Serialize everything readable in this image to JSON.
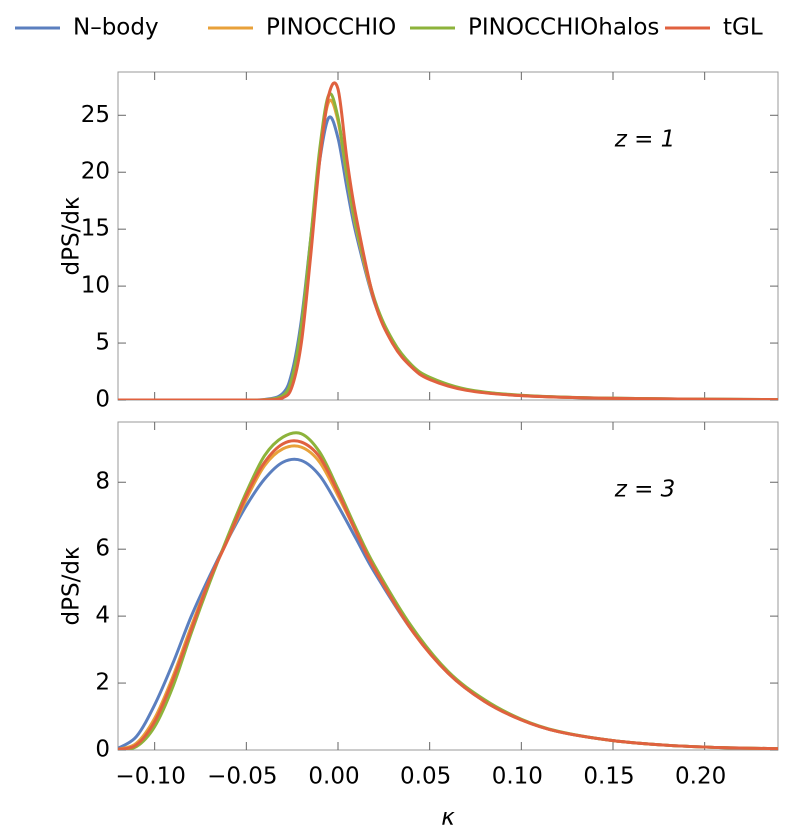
{
  "legend": [
    {
      "name": "N–body",
      "color": "#5b7fbf"
    },
    {
      "name": "PINOCCHIO",
      "color": "#e8a13a"
    },
    {
      "name": "PINOCCHIOhalos",
      "color": "#8db33b"
    },
    {
      "name": "tGL",
      "color": "#e0613f"
    }
  ],
  "chart_data": [
    {
      "type": "line",
      "ylabel": "dPS/dκ",
      "annotation": "z = 1",
      "x": [
        -0.12,
        -0.06,
        -0.04,
        -0.03,
        -0.025,
        -0.02,
        -0.015,
        -0.01,
        -0.005,
        0,
        0.005,
        0.01,
        0.02,
        0.03,
        0.04,
        0.05,
        0.07,
        0.1,
        0.15,
        0.24
      ],
      "series": [
        {
          "values": [
            0,
            0,
            0.05,
            0.6,
            2.5,
            7,
            14,
            21,
            24.8,
            23,
            18.5,
            14.5,
            8.5,
            5,
            3,
            1.9,
            0.9,
            0.4,
            0.15,
            0.03
          ]
        },
        {
          "values": [
            0,
            0,
            0.02,
            0.4,
            1.8,
            6,
            13.5,
            21.5,
            26.2,
            24.5,
            19.5,
            15,
            8.6,
            5,
            3,
            1.9,
            0.9,
            0.4,
            0.15,
            0.03
          ]
        },
        {
          "values": [
            0,
            0,
            0.02,
            0.4,
            2,
            6.5,
            14,
            22,
            26.8,
            24.8,
            19.7,
            15.2,
            8.8,
            5.2,
            3.1,
            2,
            0.95,
            0.42,
            0.15,
            0.03
          ]
        },
        {
          "values": [
            0,
            0,
            0.01,
            0.2,
            1.2,
            5,
            12.5,
            21,
            26.8,
            27.3,
            21,
            16,
            8.6,
            4.9,
            2.9,
            1.8,
            0.85,
            0.38,
            0.14,
            0.03
          ]
        }
      ],
      "xlim": [
        -0.12,
        0.24
      ],
      "xticks": [
        -0.1,
        -0.05,
        0,
        0.05,
        0.1,
        0.15,
        0.2
      ],
      "ylim": [
        0,
        28.8
      ],
      "yticks": [
        0,
        5,
        10,
        15,
        20,
        25
      ]
    },
    {
      "type": "line",
      "ylabel": "dPS/dκ",
      "annotation": "z = 3",
      "xlabel": "κ",
      "x": [
        -0.12,
        -0.11,
        -0.1,
        -0.09,
        -0.08,
        -0.07,
        -0.06,
        -0.05,
        -0.04,
        -0.03,
        -0.02,
        -0.01,
        0,
        0.01,
        0.02,
        0.04,
        0.06,
        0.08,
        0.1,
        0.12,
        0.15,
        0.18,
        0.21,
        0.24
      ],
      "series": [
        {
          "values": [
            0.05,
            0.4,
            1.35,
            2.6,
            4.0,
            5.2,
            6.3,
            7.3,
            8.1,
            8.6,
            8.65,
            8.2,
            7.3,
            6.3,
            5.3,
            3.6,
            2.3,
            1.45,
            0.9,
            0.55,
            0.28,
            0.14,
            0.07,
            0.04
          ]
        },
        {
          "values": [
            0.02,
            0.2,
            0.95,
            2.2,
            3.7,
            5.1,
            6.3,
            7.5,
            8.5,
            9.0,
            9.05,
            8.6,
            7.6,
            6.5,
            5.4,
            3.6,
            2.3,
            1.45,
            0.9,
            0.55,
            0.28,
            0.14,
            0.07,
            0.04
          ]
        },
        {
          "values": [
            0.01,
            0.1,
            0.7,
            1.9,
            3.5,
            5.0,
            6.4,
            7.7,
            8.8,
            9.35,
            9.45,
            8.9,
            7.8,
            6.6,
            5.5,
            3.7,
            2.35,
            1.5,
            0.92,
            0.56,
            0.28,
            0.14,
            0.07,
            0.04
          ]
        },
        {
          "values": [
            0.02,
            0.15,
            0.85,
            2.1,
            3.6,
            5.1,
            6.3,
            7.6,
            8.6,
            9.15,
            9.2,
            8.75,
            7.7,
            6.5,
            5.4,
            3.6,
            2.3,
            1.45,
            0.9,
            0.55,
            0.28,
            0.14,
            0.07,
            0.04
          ]
        }
      ],
      "xlim": [
        -0.12,
        0.24
      ],
      "xticks": [
        {
          "value": -0.1,
          "label": "−0.10"
        },
        {
          "value": -0.05,
          "label": "−0.05"
        },
        {
          "value": 0,
          "label": "0.00"
        },
        {
          "value": 0.05,
          "label": "0.05"
        },
        {
          "value": 0.1,
          "label": "0.10"
        },
        {
          "value": 0.15,
          "label": "0.15"
        },
        {
          "value": 0.2,
          "label": "0.20"
        }
      ],
      "ylim": [
        0,
        9.8
      ],
      "yticks": [
        0,
        2,
        4,
        6,
        8
      ]
    }
  ]
}
